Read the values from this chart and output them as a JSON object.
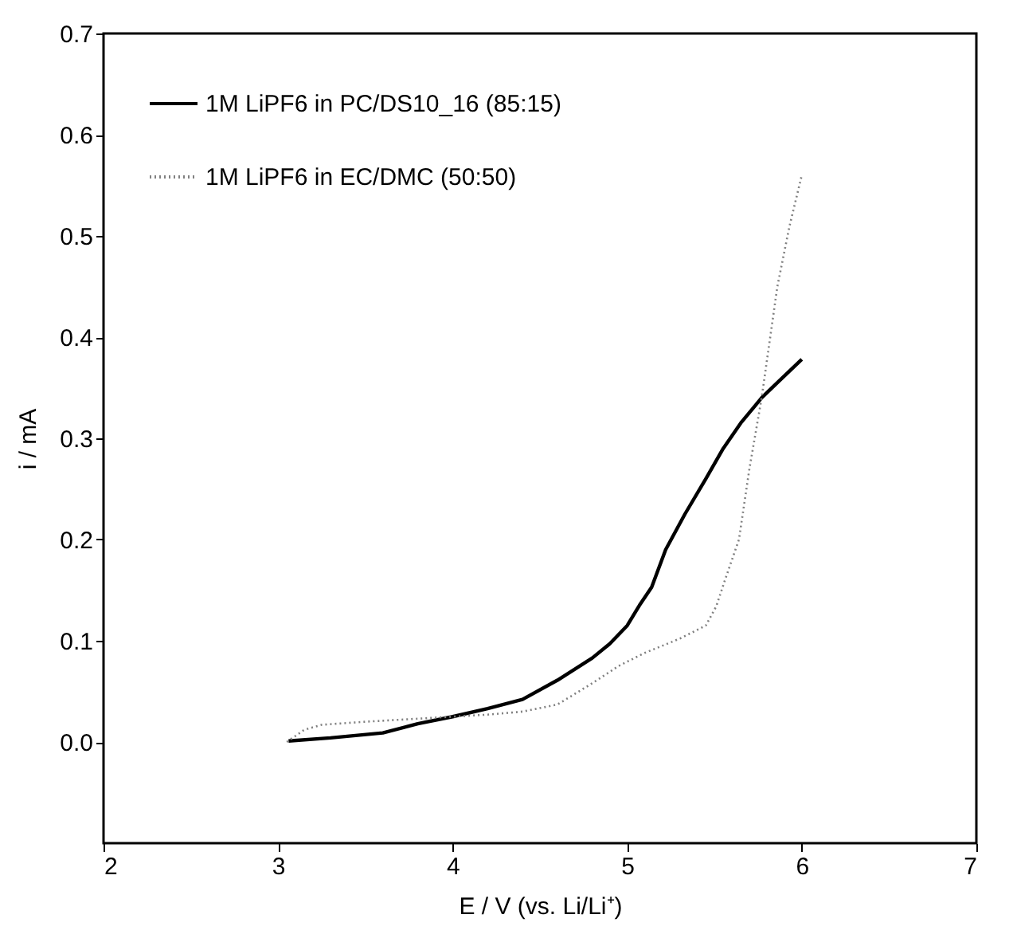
{
  "chart_data": {
    "type": "line",
    "xlabel": "E / V (vs. Li/Li⁺)",
    "ylabel": "i / mA",
    "xlim": [
      2,
      7
    ],
    "xticks": [
      2,
      3,
      4,
      5,
      6,
      7
    ],
    "ylim": [
      -0.1,
      0.7
    ],
    "yticks": [
      {
        "value": 0,
        "label": "0.0"
      },
      0.1,
      0.2,
      0.3,
      0.4,
      0.5,
      0.6,
      0.7
    ],
    "legend": "top left",
    "series": [
      {
        "name": "1M LiPF6 in PC/DS10_16 (85:15)",
        "color": "#000000",
        "line_style": "solid",
        "x": [
          3.06,
          3.3,
          3.6,
          3.8,
          4.0,
          4.2,
          4.4,
          4.6,
          4.8,
          4.9,
          5.0,
          5.07,
          5.14,
          5.22,
          5.33,
          5.45,
          5.55,
          5.65,
          5.77,
          5.86,
          6.0
        ],
        "values": [
          0.001,
          0.004,
          0.009,
          0.018,
          0.025,
          0.033,
          0.042,
          0.061,
          0.083,
          0.097,
          0.115,
          0.135,
          0.153,
          0.19,
          0.225,
          0.26,
          0.29,
          0.315,
          0.34,
          0.355,
          0.378
        ]
      },
      {
        "name": "1M LiPF6 in EC/DMC (50:50)",
        "color": "#808080",
        "line_style": "dotted",
        "x": [
          3.05,
          3.15,
          3.25,
          3.5,
          3.8,
          4.0,
          4.2,
          4.4,
          4.6,
          4.8,
          4.95,
          5.1,
          5.3,
          5.45,
          5.51,
          5.56,
          5.64,
          5.7,
          5.77,
          5.86,
          5.93,
          6.0
        ],
        "values": [
          0.0,
          0.012,
          0.017,
          0.02,
          0.023,
          0.025,
          0.027,
          0.03,
          0.037,
          0.058,
          0.075,
          0.088,
          0.102,
          0.115,
          0.134,
          0.16,
          0.2,
          0.27,
          0.34,
          0.45,
          0.51,
          0.56
        ]
      }
    ]
  }
}
